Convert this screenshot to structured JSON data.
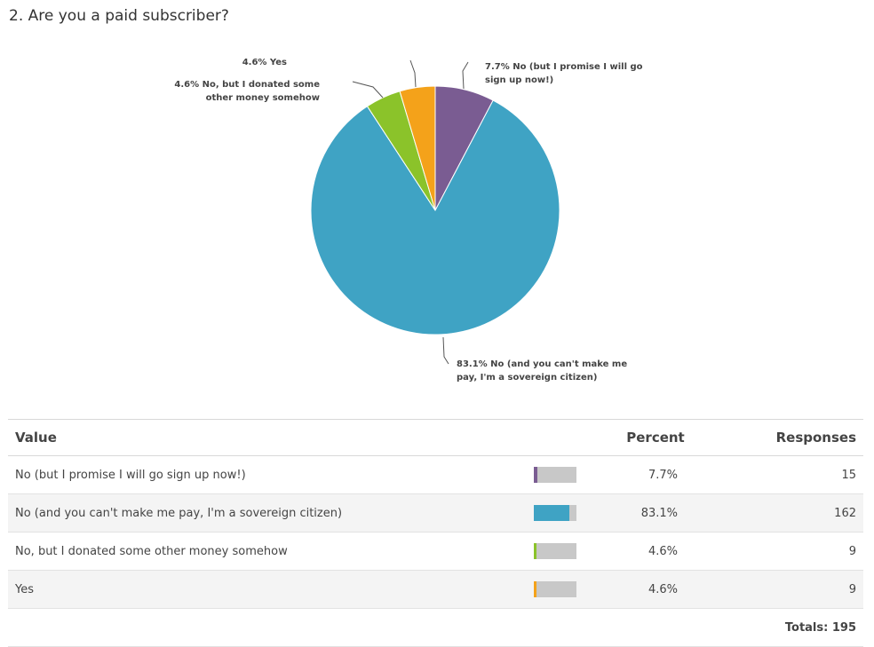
{
  "question": {
    "title": "2. Are you a paid subscriber?"
  },
  "chart_data": {
    "type": "pie",
    "title": "2. Are you a paid subscriber?",
    "slices": [
      {
        "label": "No (but I promise I will go sign up now!)",
        "pct_label": "7.7%",
        "value": 7.7,
        "color": "#7a5c92",
        "label_lines": [
          "7.7% No (but I promise I will go",
          "sign up now!)"
        ]
      },
      {
        "label": "No (and you can't make me pay, I'm a sovereign citizen)",
        "pct_label": "83.1%",
        "value": 83.1,
        "color": "#3fa3c4",
        "label_lines": [
          "83.1% No (and you can't make me",
          "pay, I'm a sovereign citizen)"
        ]
      },
      {
        "label": "No, but I donated some other money somehow",
        "pct_label": "4.6%",
        "value": 4.6,
        "color": "#8bc32a",
        "label_lines": [
          "4.6% No, but I donated some",
          "other money somehow"
        ]
      },
      {
        "label": "Yes",
        "pct_label": "4.6%",
        "value": 4.6,
        "color": "#f4a21a",
        "label_lines": [
          "4.6% Yes"
        ]
      }
    ]
  },
  "table": {
    "headers": {
      "value": "Value",
      "percent": "Percent",
      "responses": "Responses"
    },
    "rows": [
      {
        "value": "No (but I promise I will go sign up now!)",
        "percent": "7.7%",
        "fraction": 0.077,
        "responses": "15",
        "color": "#7a5c92"
      },
      {
        "value": "No (and you can't make me pay, I'm a sovereign citizen)",
        "percent": "83.1%",
        "fraction": 0.831,
        "responses": "162",
        "color": "#3fa3c4"
      },
      {
        "value": "No, but I donated some other money somehow",
        "percent": "4.6%",
        "fraction": 0.046,
        "responses": "9",
        "color": "#8bc32a"
      },
      {
        "value": "Yes",
        "percent": "4.6%",
        "fraction": 0.046,
        "responses": "9",
        "color": "#f4a21a"
      }
    ],
    "totals_label": "Totals: 195"
  }
}
